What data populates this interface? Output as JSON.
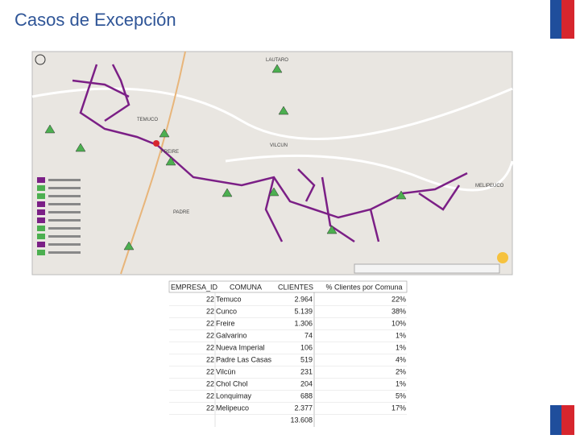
{
  "header": {
    "title": "Casos de Excepción"
  },
  "map": {
    "places": [
      "LAUTARO",
      "TEMUCO",
      "VILCUN",
      "FREIRE",
      "MELIPEUCO",
      "PADRE"
    ]
  },
  "table": {
    "headers": [
      "EMPRESA_ID",
      "COMUNA",
      "CLIENTES",
      "% Clientes por Comuna"
    ],
    "rows": [
      [
        "22",
        "Temuco",
        "2.964",
        "22%"
      ],
      [
        "22",
        "Cunco",
        "5.139",
        "38%"
      ],
      [
        "22",
        "Freire",
        "1.306",
        "10%"
      ],
      [
        "22",
        "Galvarino",
        "74",
        "1%"
      ],
      [
        "22",
        "Nueva Imperial",
        "106",
        "1%"
      ],
      [
        "22",
        "Padre Las Casas",
        "519",
        "4%"
      ],
      [
        "22",
        "Vilcún",
        "231",
        "2%"
      ],
      [
        "22",
        "Chol Chol",
        "204",
        "1%"
      ],
      [
        "22",
        "Lonquimay",
        "688",
        "5%"
      ],
      [
        "22",
        "Melipeuco",
        "2.377",
        "17%"
      ]
    ],
    "total": "13.608"
  }
}
